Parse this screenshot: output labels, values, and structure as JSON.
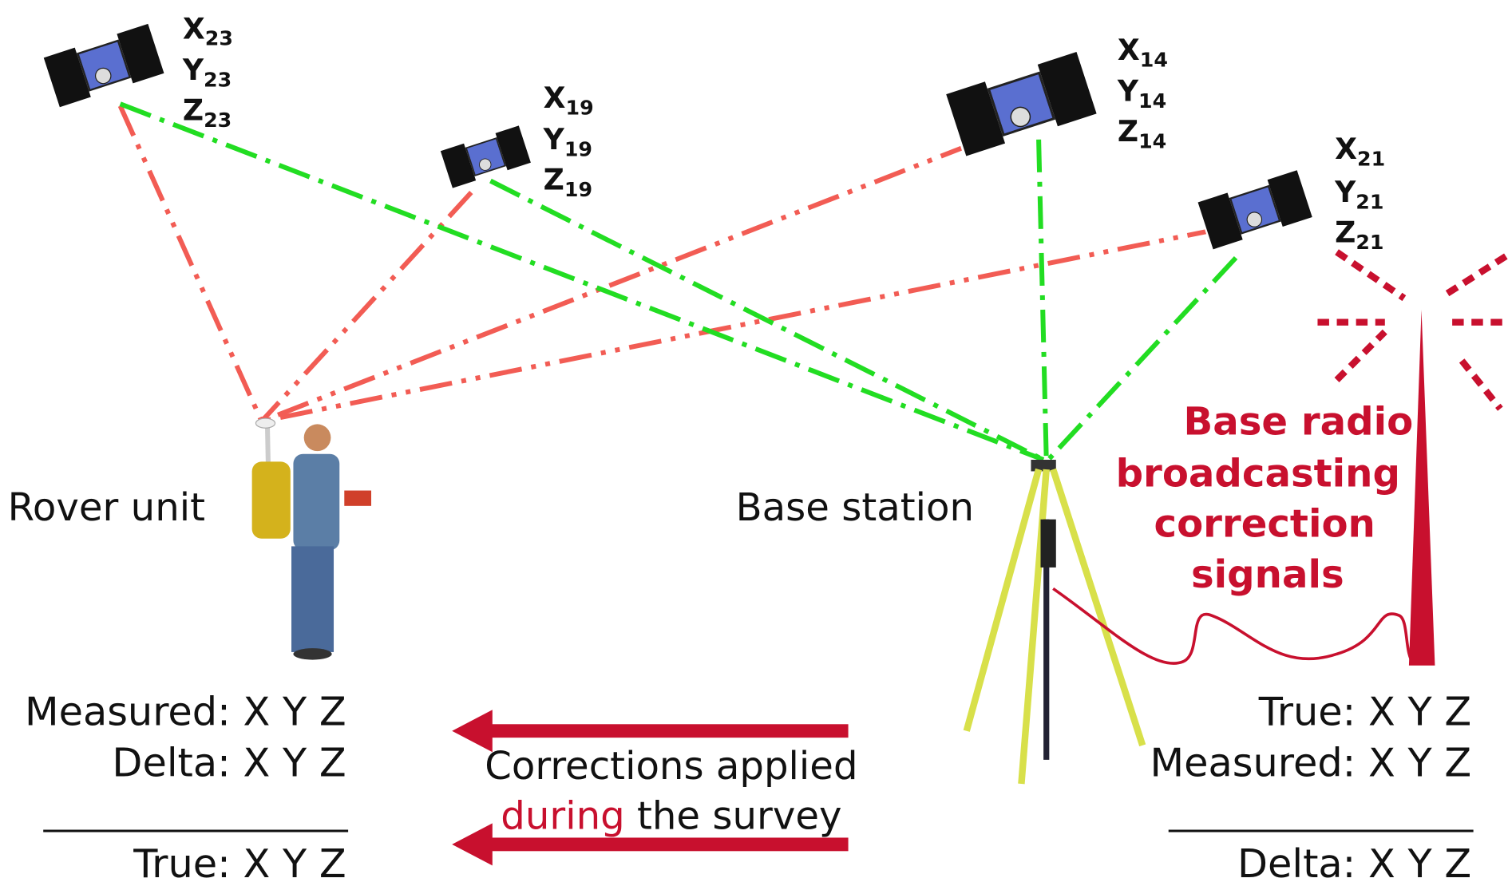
{
  "satellites": [
    {
      "coords": [
        {
          "letter": "X",
          "sub": "23"
        },
        {
          "letter": "Y",
          "sub": "23"
        },
        {
          "letter": "Z",
          "sub": "23"
        }
      ]
    },
    {
      "coords": [
        {
          "letter": "X",
          "sub": "19"
        },
        {
          "letter": "Y",
          "sub": "19"
        },
        {
          "letter": "Z",
          "sub": "19"
        }
      ]
    },
    {
      "coords": [
        {
          "letter": "X",
          "sub": "14"
        },
        {
          "letter": "Y",
          "sub": "14"
        },
        {
          "letter": "Z",
          "sub": "14"
        }
      ]
    },
    {
      "coords": [
        {
          "letter": "X",
          "sub": "21"
        },
        {
          "letter": "Y",
          "sub": "21"
        },
        {
          "letter": "Z",
          "sub": "21"
        }
      ]
    }
  ],
  "rover": {
    "label": "Rover unit",
    "results": [
      "Measured: X Y Z",
      "Delta: X Y Z"
    ],
    "total": "True: X Y Z"
  },
  "base": {
    "label": "Base station",
    "results": [
      "True: X Y Z",
      "Measured: X Y Z"
    ],
    "total": "Delta: X Y Z"
  },
  "radio": {
    "lines": [
      "Base radio",
      "broadcasting",
      "correction",
      "signals"
    ]
  },
  "corrections": {
    "line1": "Corrections applied",
    "highlight": "during",
    "rest": " the survey"
  }
}
